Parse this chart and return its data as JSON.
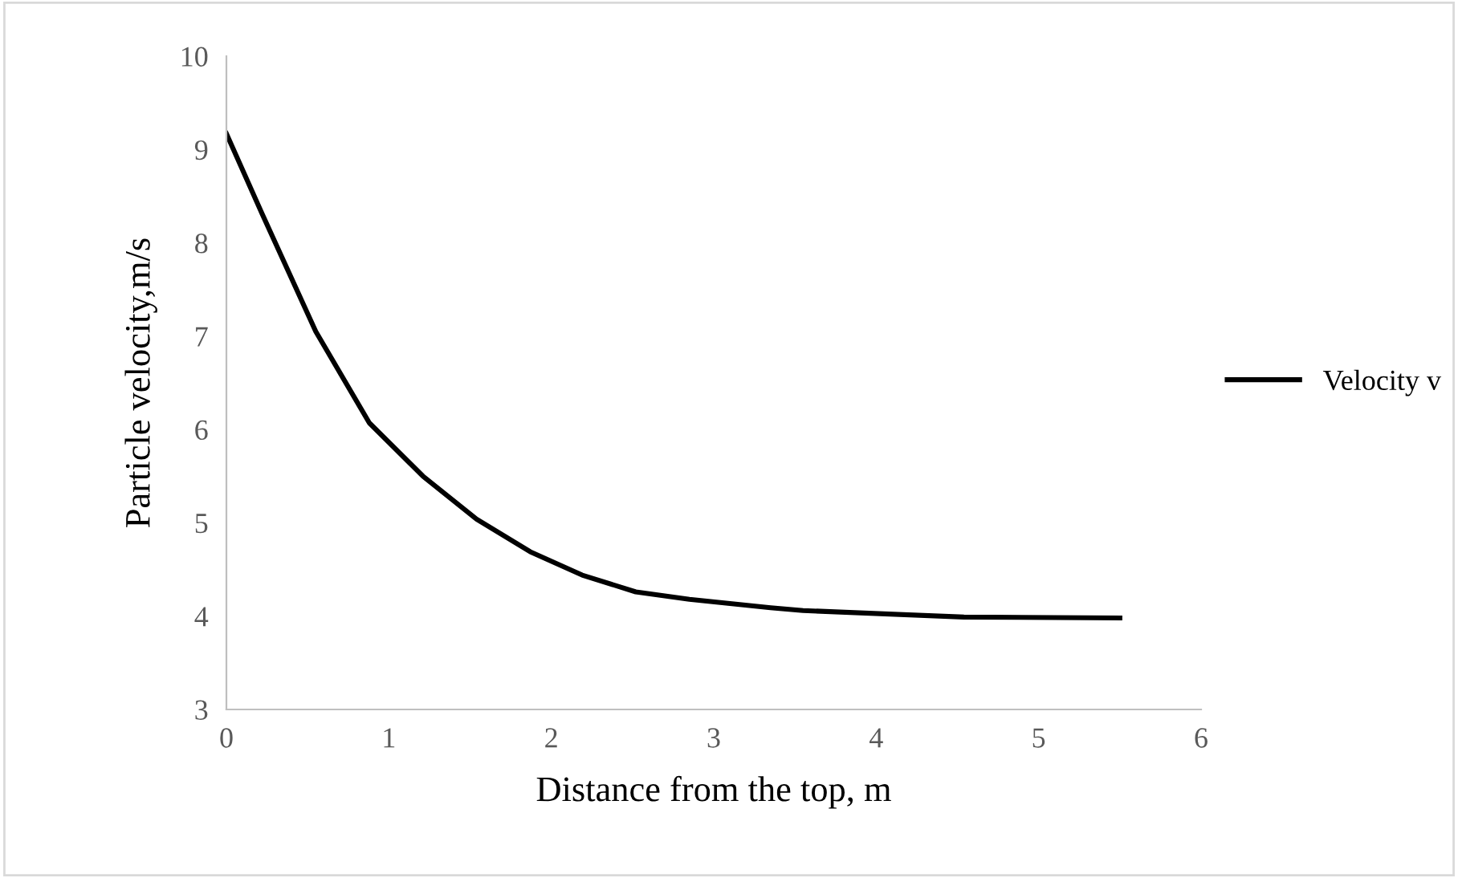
{
  "chart_data": {
    "type": "line",
    "xlabel": "Distance from the top, m",
    "ylabel": "Particle velocity,m/s",
    "series": [
      {
        "name": "Velocity v",
        "color": "#000000",
        "x": [
          0,
          0.22,
          0.55,
          0.88,
          1.21,
          1.54,
          1.87,
          2.19,
          2.52,
          2.85,
          3.35,
          3.55,
          4.54,
          5.5
        ],
        "values": [
          9.17,
          8.31,
          7.05,
          6.07,
          5.5,
          5.04,
          4.69,
          4.44,
          4.26,
          4.18,
          4.09,
          4.06,
          3.99,
          3.98
        ]
      }
    ],
    "xlim": [
      0,
      6
    ],
    "xticks": [
      0,
      1,
      2,
      3,
      4,
      5,
      6
    ],
    "ylim": [
      3,
      10
    ],
    "yticks": [
      3,
      4,
      5,
      6,
      7,
      8,
      9,
      10
    ],
    "grid": false,
    "legend": "right",
    "marker": "none",
    "line_style": "solid"
  }
}
